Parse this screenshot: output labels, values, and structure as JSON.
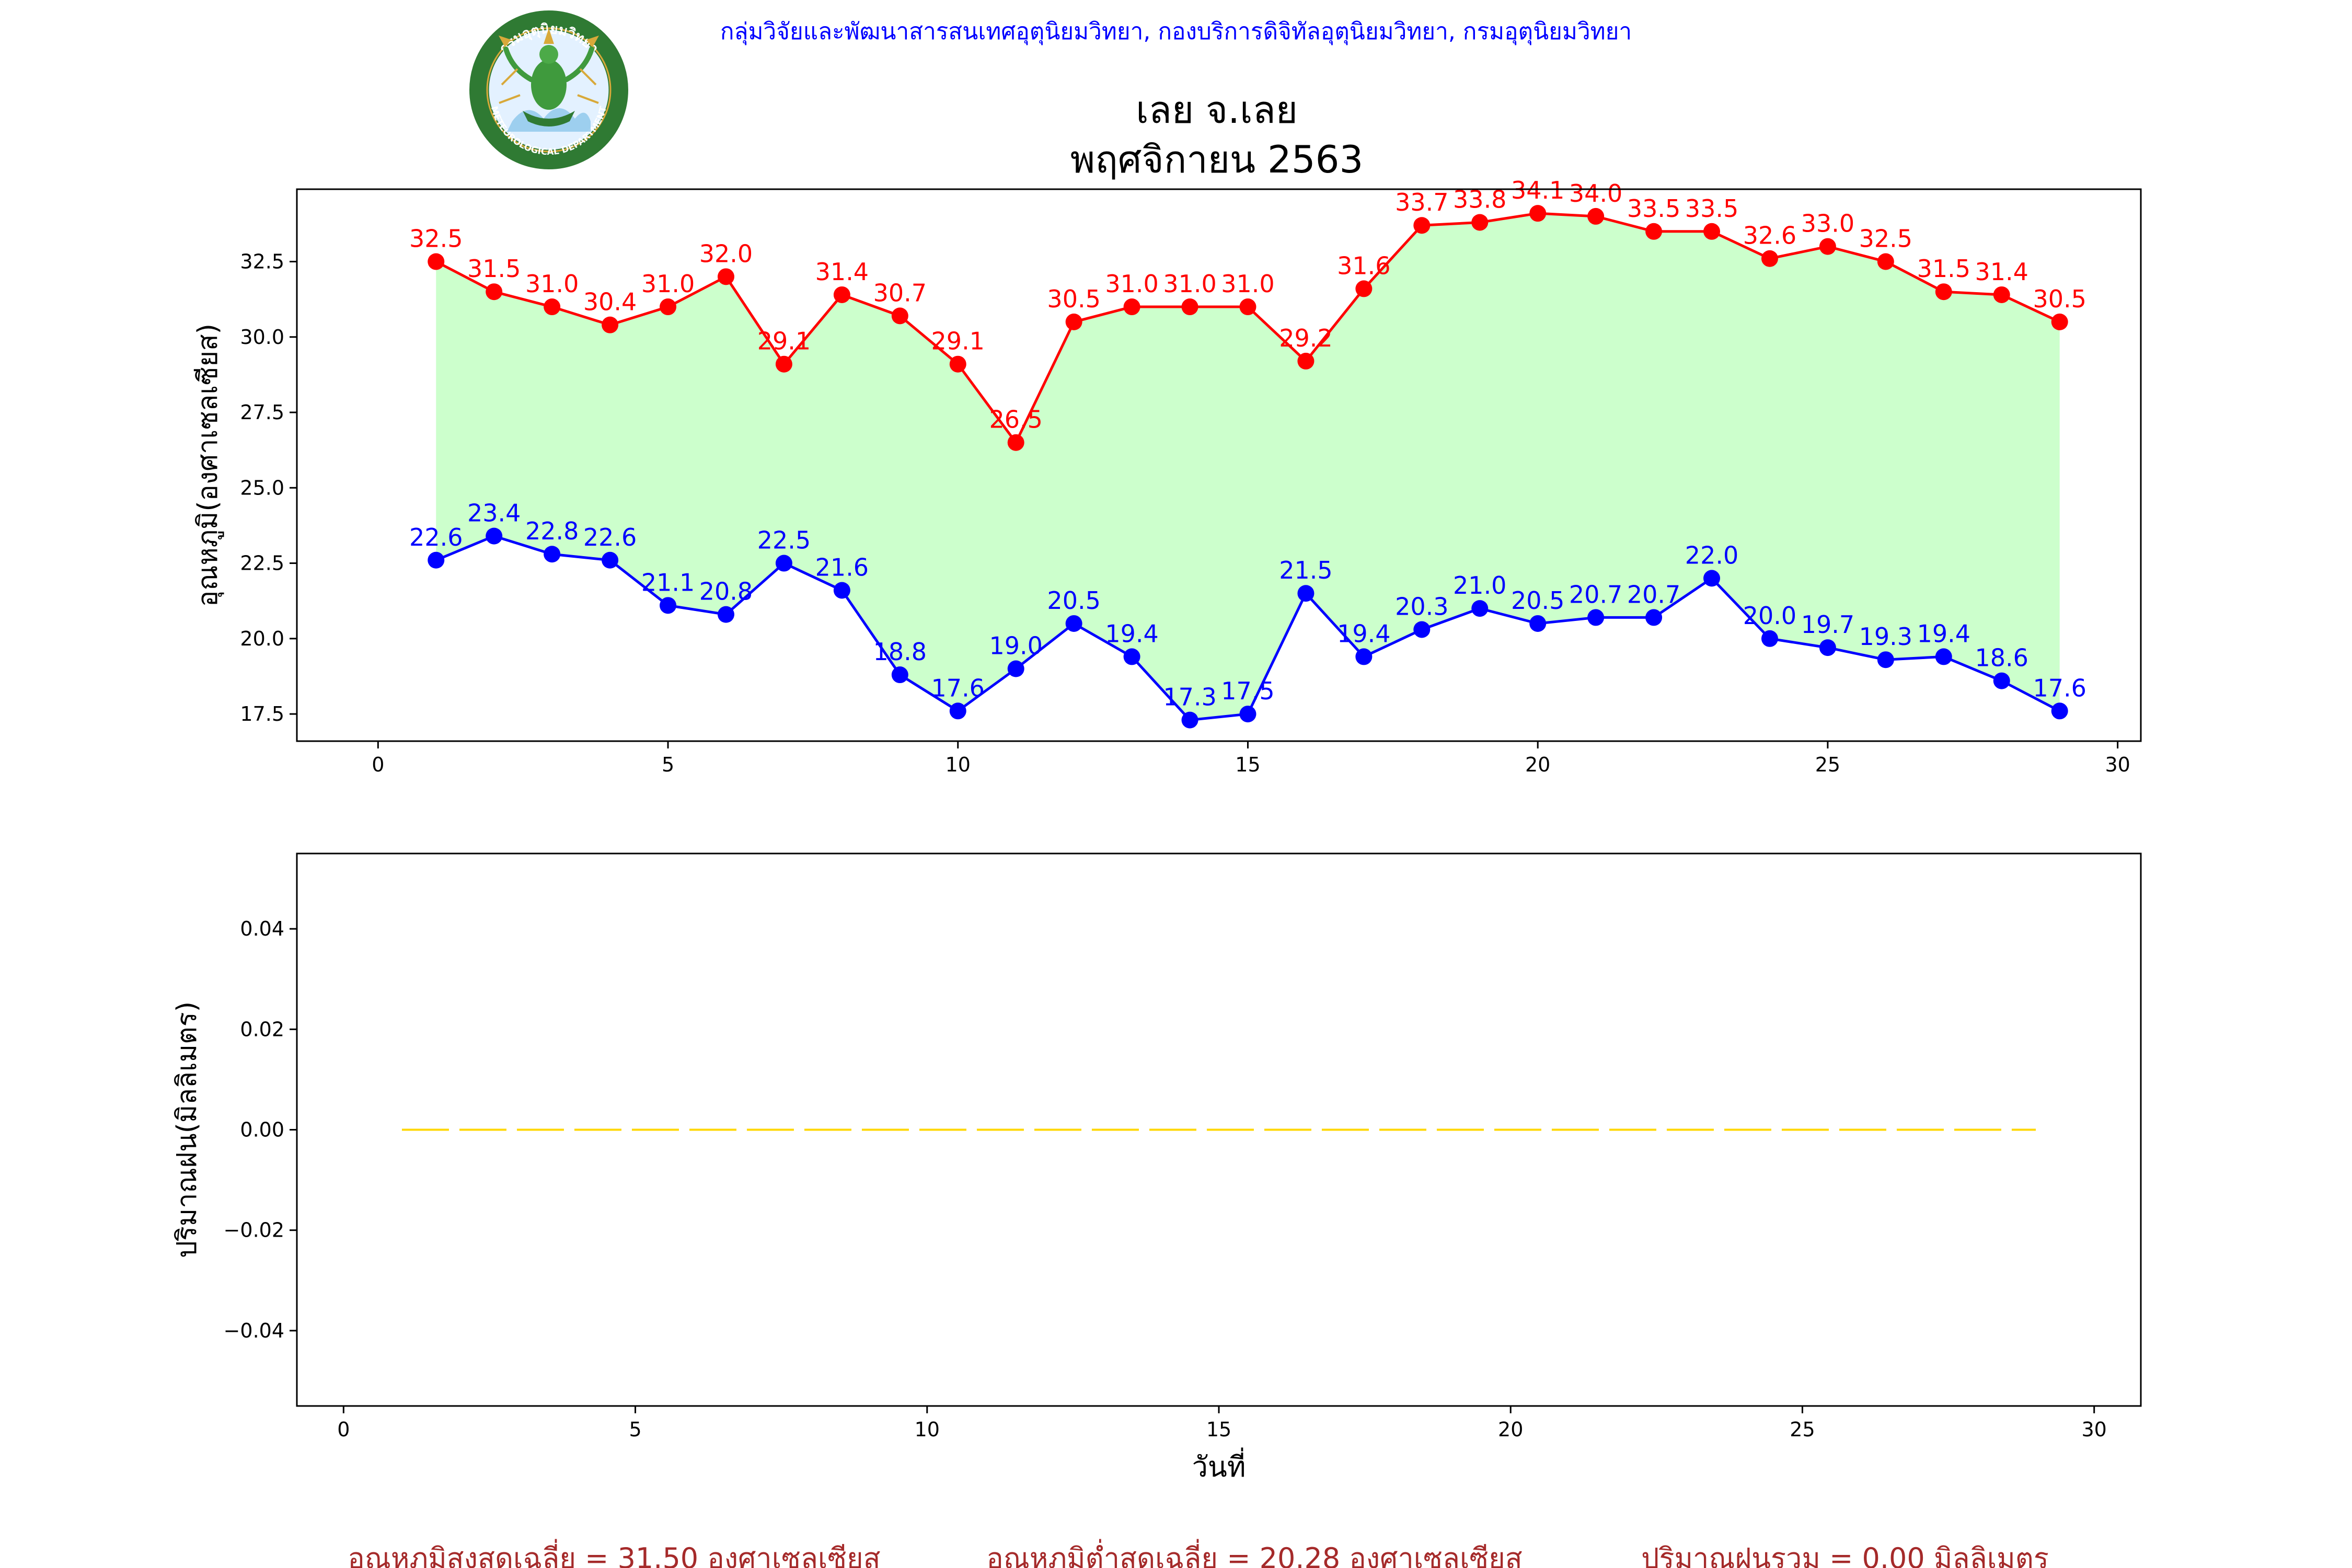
{
  "header": {
    "org_text": "กลุ่มวิจัยและพัฒนาสารสนเทศอุตุนิยมวิทยา, กองบริการดิจิทัลอุตุนิยมวิทยา, กรมอุตุนิยมวิทยา",
    "org_color": "#0000ff",
    "logo_text": "กรมอุตุนิยมวิทยา",
    "logo_subtext": "METEOROLOGICAL DEPARTMENT",
    "title_line1": "เลย จ.เลย",
    "title_line2": "พฤศจิกายน 2563"
  },
  "footer": {
    "avg_max": "อุณหภูมิสูงสุดเฉลี่ย = 31.50 องศาเซลเซียส",
    "avg_min": "อุณหภูมิต่ำสุดเฉลี่ย = 20.28 องศาเซลเซียส",
    "rain_total": "ปริมาณฝนรวม = 0.00 มิลลิเมตร",
    "color": "#a52a2a"
  },
  "chart_data": [
    {
      "type": "line",
      "ylabel": "อุณหภูมิ(องศาเซลเซียส)",
      "xlabel": "",
      "xlim": [
        -1.4,
        30.4
      ],
      "ylim": [
        16.6,
        34.9
      ],
      "xticks": [
        0,
        5,
        10,
        15,
        20,
        25,
        30
      ],
      "yticks": [
        17.5,
        20.0,
        22.5,
        25.0,
        27.5,
        30.0,
        32.5
      ],
      "fill_between": {
        "color": "#ccffcc"
      },
      "x": [
        1,
        2,
        3,
        4,
        5,
        6,
        7,
        8,
        9,
        10,
        11,
        12,
        13,
        14,
        15,
        16,
        17,
        18,
        19,
        20,
        21,
        22,
        23,
        24,
        25,
        26,
        27,
        28,
        29
      ],
      "series": [
        {
          "color": "#ff0000",
          "label_position": "above",
          "values": [
            32.5,
            31.5,
            31.0,
            30.4,
            31.0,
            32.0,
            29.1,
            31.4,
            30.7,
            29.1,
            26.5,
            30.5,
            31.0,
            31.0,
            31.0,
            29.2,
            31.6,
            33.7,
            33.8,
            34.1,
            34.0,
            33.5,
            33.5,
            32.6,
            33.0,
            32.5,
            31.5,
            31.4,
            30.5
          ]
        },
        {
          "color": "#0000ff",
          "label_position": "above",
          "values": [
            22.6,
            23.4,
            22.8,
            22.6,
            21.1,
            20.8,
            22.5,
            21.6,
            18.8,
            17.6,
            19.0,
            20.5,
            19.4,
            17.3,
            17.5,
            21.5,
            19.4,
            20.3,
            21.0,
            20.5,
            20.7,
            20.7,
            22.0,
            20.0,
            19.7,
            19.3,
            19.4,
            18.6,
            17.6
          ]
        }
      ]
    },
    {
      "type": "line",
      "ylabel": "ปริมาณฝน(มิลลิเมตร)",
      "xlabel": "วันที่",
      "xlim": [
        -0.8,
        30.8
      ],
      "ylim": [
        -0.055,
        0.055
      ],
      "xticks": [
        0,
        5,
        10,
        15,
        20,
        25,
        30
      ],
      "yticks": [
        -0.04,
        -0.02,
        0.0,
        0.02,
        0.04
      ],
      "ytick_labels": [
        "−0.04",
        "−0.02",
        "0.00",
        "0.02",
        "0.04"
      ],
      "line_style": "dashed",
      "x": [
        1,
        2,
        3,
        4,
        5,
        6,
        7,
        8,
        9,
        10,
        11,
        12,
        13,
        14,
        15,
        16,
        17,
        18,
        19,
        20,
        21,
        22,
        23,
        24,
        25,
        26,
        27,
        28,
        29
      ],
      "series": [
        {
          "color": "#ffd700",
          "values": [
            0,
            0,
            0,
            0,
            0,
            0,
            0,
            0,
            0,
            0,
            0,
            0,
            0,
            0,
            0,
            0,
            0,
            0,
            0,
            0,
            0,
            0,
            0,
            0,
            0,
            0,
            0,
            0,
            0
          ]
        }
      ]
    }
  ]
}
